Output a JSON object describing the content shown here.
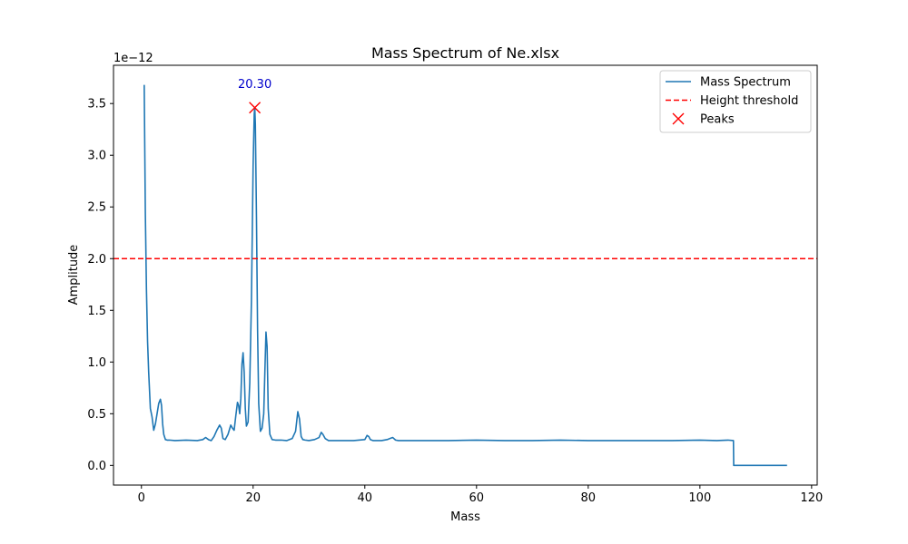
{
  "chart_data": {
    "type": "line",
    "title": "Mass Spectrum of Ne.xlsx",
    "xlabel": "Mass",
    "ylabel": "Amplitude",
    "y_scale_label": "1e−12",
    "xlim": [
      -5,
      121
    ],
    "ylim": [
      -0.19,
      3.87
    ],
    "x_ticks": [
      0,
      20,
      40,
      60,
      80,
      100,
      120
    ],
    "x_tick_labels": [
      "0",
      "20",
      "40",
      "60",
      "80",
      "100",
      "120"
    ],
    "y_ticks": [
      0.0,
      0.5,
      1.0,
      1.5,
      2.0,
      2.5,
      3.0,
      3.5
    ],
    "y_tick_labels": [
      "0.0",
      "0.5",
      "1.0",
      "1.5",
      "2.0",
      "2.5",
      "3.0",
      "3.5"
    ],
    "legend_position": "top-right",
    "series": [
      {
        "name": "Mass Spectrum",
        "color": "#1f77b4",
        "style": "solid",
        "x": [
          0.5,
          0.7,
          0.9,
          1.1,
          1.3,
          1.6,
          1.9,
          2.2,
          2.5,
          2.8,
          3.1,
          3.4,
          3.6,
          3.8,
          4.0,
          4.3,
          4.6,
          5.0,
          6.0,
          8.0,
          10.0,
          11.0,
          11.5,
          12.0,
          12.5,
          13.0,
          13.5,
          14.0,
          14.3,
          14.6,
          15.0,
          15.5,
          16.0,
          16.3,
          16.6,
          16.9,
          17.2,
          17.4,
          17.6,
          17.8,
          18.0,
          18.2,
          18.4,
          18.6,
          18.8,
          19.1,
          19.4,
          19.7,
          20.0,
          20.2,
          20.3,
          20.4,
          20.6,
          20.8,
          21.0,
          21.3,
          21.6,
          21.9,
          22.1,
          22.3,
          22.5,
          22.7,
          23.0,
          23.4,
          24.0,
          25.0,
          26.0,
          27.0,
          27.6,
          28.0,
          28.3,
          28.6,
          28.9,
          29.3,
          30.0,
          31.0,
          31.8,
          32.2,
          32.5,
          32.9,
          33.5,
          35.0,
          38.0,
          40.0,
          40.4,
          40.7,
          41.0,
          41.5,
          42.0,
          43.0,
          44.0,
          44.5,
          45.0,
          45.5,
          46.0,
          48.0,
          50.0,
          52.0,
          55.0,
          60.0,
          65.0,
          70.0,
          75.0,
          80.0,
          85.0,
          90.0,
          95.0,
          100.0,
          103.0,
          105.0,
          106.0,
          106.05,
          108.0,
          112.0,
          115.6
        ],
        "y": [
          3.68,
          2.45,
          1.7,
          1.2,
          0.9,
          0.55,
          0.47,
          0.34,
          0.4,
          0.5,
          0.6,
          0.64,
          0.58,
          0.4,
          0.3,
          0.25,
          0.245,
          0.245,
          0.24,
          0.245,
          0.24,
          0.25,
          0.27,
          0.25,
          0.24,
          0.28,
          0.34,
          0.39,
          0.36,
          0.26,
          0.25,
          0.3,
          0.39,
          0.36,
          0.34,
          0.48,
          0.61,
          0.58,
          0.5,
          0.65,
          0.98,
          1.09,
          0.9,
          0.55,
          0.38,
          0.42,
          0.8,
          1.6,
          2.9,
          3.4,
          3.46,
          3.3,
          2.4,
          1.3,
          0.6,
          0.33,
          0.36,
          0.5,
          0.9,
          1.29,
          1.15,
          0.55,
          0.3,
          0.25,
          0.245,
          0.245,
          0.24,
          0.26,
          0.33,
          0.52,
          0.45,
          0.28,
          0.25,
          0.245,
          0.24,
          0.25,
          0.27,
          0.32,
          0.3,
          0.26,
          0.24,
          0.24,
          0.24,
          0.25,
          0.29,
          0.28,
          0.25,
          0.24,
          0.24,
          0.24,
          0.25,
          0.26,
          0.27,
          0.245,
          0.24,
          0.24,
          0.24,
          0.24,
          0.24,
          0.245,
          0.24,
          0.24,
          0.245,
          0.24,
          0.24,
          0.24,
          0.24,
          0.245,
          0.24,
          0.245,
          0.24,
          0.0,
          0.0,
          0.0,
          0.0
        ]
      }
    ],
    "threshold": {
      "name": "Height threshold",
      "value": 2.0,
      "color": "#ff0000",
      "style": "dashed"
    },
    "peaks": {
      "name": "Peaks",
      "color": "#ff0000",
      "marker": "x",
      "points": [
        {
          "x": 20.3,
          "y": 3.46,
          "label": "20.30"
        }
      ],
      "label_color": "#0000cc"
    }
  }
}
